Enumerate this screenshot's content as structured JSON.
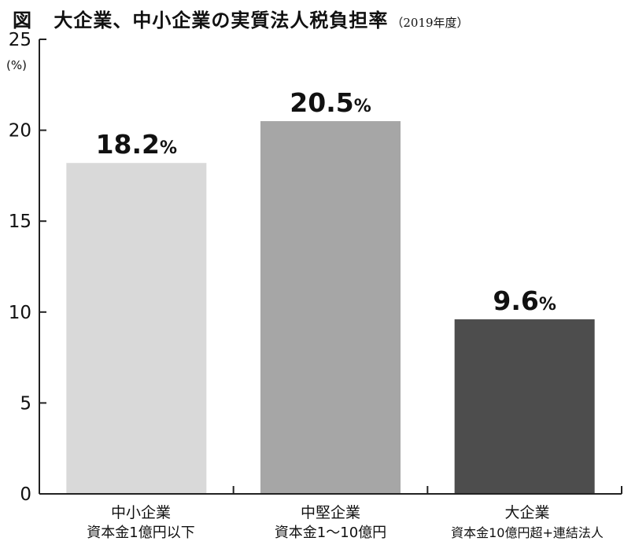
{
  "title": {
    "prefix": "図",
    "main": "大企業、中小企業の実質法人税負担率",
    "year": "（2019年度）"
  },
  "chart_data": {
    "type": "bar",
    "title": "大企業、中小企業の実質法人税負担率（2019年度）",
    "ylabel": "(%)",
    "ylim": [
      0,
      25
    ],
    "yticks": [
      0,
      5,
      10,
      15,
      20,
      25
    ],
    "grid": false,
    "categories": [
      {
        "name": "中小企業",
        "sub": "資本金1億円以下"
      },
      {
        "name": "中堅企業",
        "sub": "資本金1～10億円"
      },
      {
        "name": "大企業",
        "sub": "資本金10億円超+連結法人"
      }
    ],
    "values": [
      18.2,
      20.5,
      9.6
    ],
    "value_labels": [
      "18.2",
      "20.5",
      "9.6"
    ],
    "value_unit": "%",
    "colors": [
      "#d9d9d9",
      "#a6a6a6",
      "#4d4d4d"
    ]
  }
}
